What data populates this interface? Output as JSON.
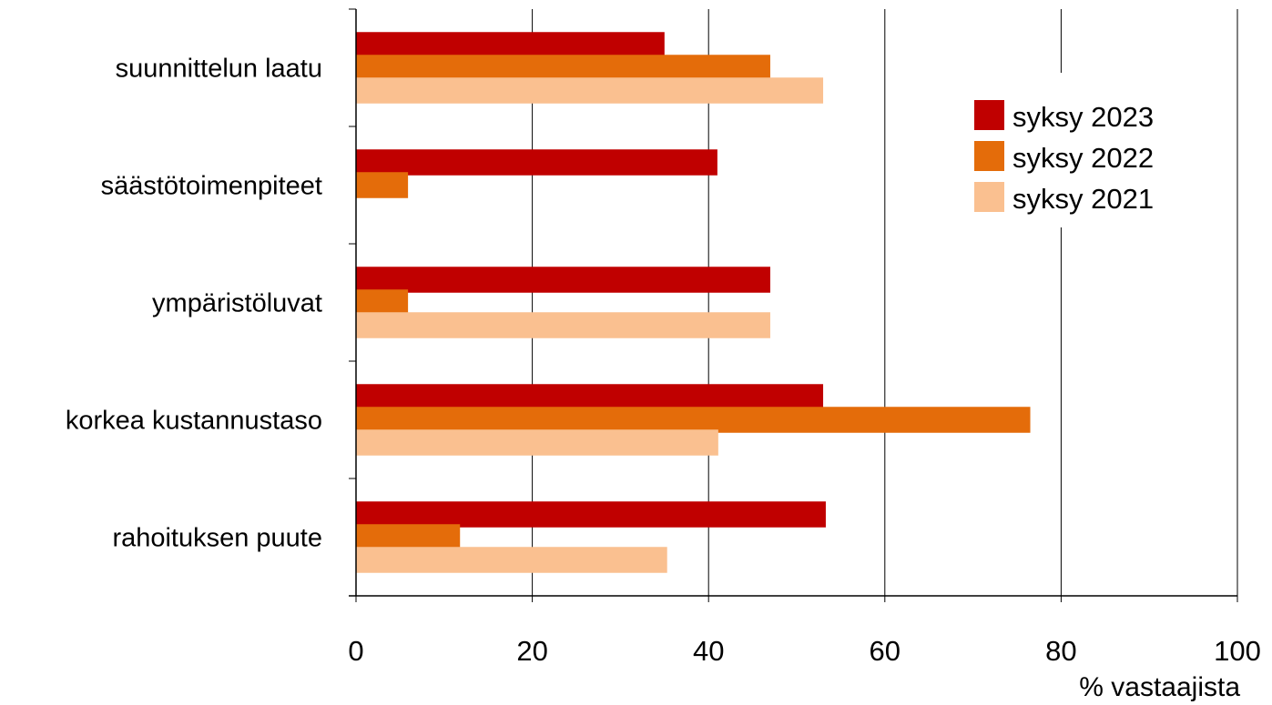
{
  "chart_data": {
    "type": "bar",
    "orientation": "horizontal",
    "categories": [
      "suunnittelun laatu",
      "säästötoimenpiteet",
      "ympäristöluvat",
      "korkea kustannustaso",
      "rahoituksen puute"
    ],
    "series": [
      {
        "name": "syksy 2023",
        "color": "#c00000",
        "values": [
          35,
          41,
          47,
          53,
          53.3
        ]
      },
      {
        "name": "syksy 2022",
        "color": "#e46c0a",
        "values": [
          47,
          5.9,
          5.9,
          76.5,
          11.8
        ]
      },
      {
        "name": "syksy 2021",
        "color": "#fac090",
        "values": [
          53,
          0,
          47,
          41.1,
          35.3
        ]
      }
    ],
    "xlabel": "% vastaajista",
    "xlim": [
      0,
      100
    ],
    "xticks": [
      "0",
      "20",
      "40",
      "60",
      "80",
      "100"
    ],
    "grid": true,
    "legend_position": "top-right"
  }
}
